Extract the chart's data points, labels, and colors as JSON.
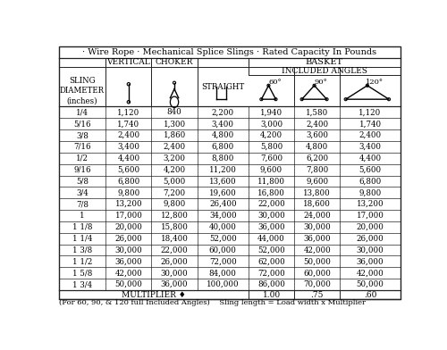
{
  "title": "· Wire Rope · Mechanical Splice Slings · Rated Capacity In Pounds",
  "footer": "(For 60, 90, & 120 full Included Angles)    Sling length = Load width x Multiplier",
  "diameters": [
    "1/4",
    "5/16",
    "3/8",
    "7/16",
    "1/2",
    "9/16",
    "5/8",
    "3/4",
    "7/8",
    "1",
    "1 1/8",
    "1 1/4",
    "1 3/8",
    "1 1/2",
    "1 5/8",
    "1 3/4"
  ],
  "vertical": [
    "1,120",
    "1,740",
    "2,400",
    "3,400",
    "4,400",
    "5,600",
    "6,800",
    "9,800",
    "13,200",
    "17,000",
    "20,000",
    "26,000",
    "30,000",
    "36,000",
    "42,000",
    "50,000"
  ],
  "choker": [
    "840",
    "1,300",
    "1,860",
    "2,400",
    "3,200",
    "4,200",
    "5,000",
    "7,200",
    "9,800",
    "12,800",
    "15,800",
    "18,400",
    "22,000",
    "26,000",
    "30,000",
    "36,000"
  ],
  "straight": [
    "2,200",
    "3,400",
    "4,800",
    "6,800",
    "8,800",
    "11,200",
    "13,600",
    "19,600",
    "26,400",
    "34,000",
    "40,000",
    "52,000",
    "60,000",
    "72,000",
    "84,000",
    "100,000"
  ],
  "angle60": [
    "1,940",
    "3,000",
    "4,200",
    "5,800",
    "7,600",
    "9,600",
    "11,800",
    "16,800",
    "22,000",
    "30,000",
    "36,000",
    "44,000",
    "52,000",
    "62,000",
    "72,000",
    "86,000"
  ],
  "angle90": [
    "1,580",
    "2,400",
    "3,600",
    "4,800",
    "6,200",
    "7,800",
    "9,600",
    "13,800",
    "18,600",
    "24,000",
    "30,000",
    "36,000",
    "42,000",
    "50,000",
    "60,000",
    "70,000"
  ],
  "angle120": [
    "1,120",
    "1,740",
    "2,400",
    "3,400",
    "4,400",
    "5,600",
    "6,800",
    "9,800",
    "13,200",
    "17,000",
    "20,000",
    "26,000",
    "30,000",
    "36,000",
    "42,000",
    "50,000"
  ],
  "multiplier_label": "MULTIPLIER ♦",
  "multipliers": [
    "1.00",
    ".75",
    ".60"
  ]
}
